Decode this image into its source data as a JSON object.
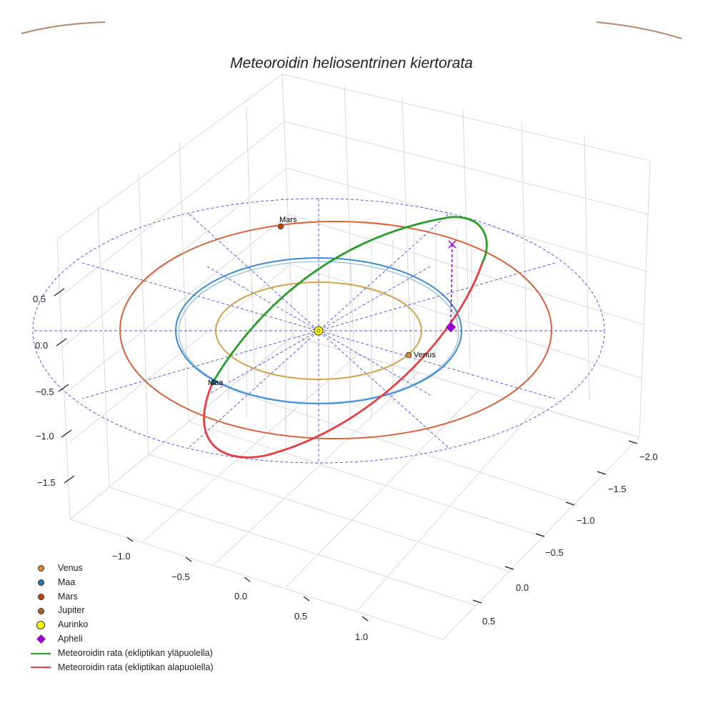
{
  "chart_data": {
    "type": "scatter",
    "title": "Meteoroidin heliosentrinen kiertorata",
    "projection": "3d",
    "axes": {
      "x_ticks": [
        "−1.0",
        "−0.5",
        "0.0",
        "0.5",
        "1.0"
      ],
      "y_ticks": [
        "−2.0",
        "−1.5",
        "−1.0",
        "−0.5",
        "0.0",
        "0.5"
      ],
      "z_ticks": [
        "0.5",
        "0.0",
        "−0.5",
        "−1.0",
        "−1.5"
      ]
    },
    "planet_labels": {
      "venus": "Venus",
      "maa": "Maa",
      "mars": "Mars"
    },
    "orbits": [
      {
        "name": "Venus",
        "radius_au": 0.72,
        "color": "#d4a24c"
      },
      {
        "name": "Maa",
        "radius_au": 1.0,
        "color": "#1f77b4"
      },
      {
        "name": "Mars",
        "radius_au": 1.52,
        "color": "#d8623a"
      }
    ],
    "legend": [
      {
        "label": "Venus",
        "kind": "dot",
        "color": "#e08a2c",
        "size": 9
      },
      {
        "label": "Maa",
        "kind": "dot",
        "color": "#1f77b4",
        "size": 9
      },
      {
        "label": "Mars",
        "kind": "dot",
        "color": "#c1440e",
        "size": 9
      },
      {
        "label": "Jupiter",
        "kind": "dot",
        "color": "#b06030",
        "size": 9
      },
      {
        "label": "Aurinko",
        "kind": "dot",
        "color": "#ffff00",
        "size": 12
      },
      {
        "label": "Apheli",
        "kind": "diamond",
        "color": "#9400d3"
      },
      {
        "label": "Meteoroidin rata (ekliptikan yläpuolella)",
        "kind": "line",
        "color": "#2a9d2a"
      },
      {
        "label": "Meteoroidin rata (ekliptikan alapuolella)",
        "kind": "line",
        "color": "#e84040"
      }
    ]
  },
  "colors": {
    "grid": "#d9d9d9",
    "reference": "#4a4adf",
    "arc": "#b8866a",
    "above": "#2a9d2a",
    "below": "#e84040",
    "aphelion": "#9400d3"
  }
}
